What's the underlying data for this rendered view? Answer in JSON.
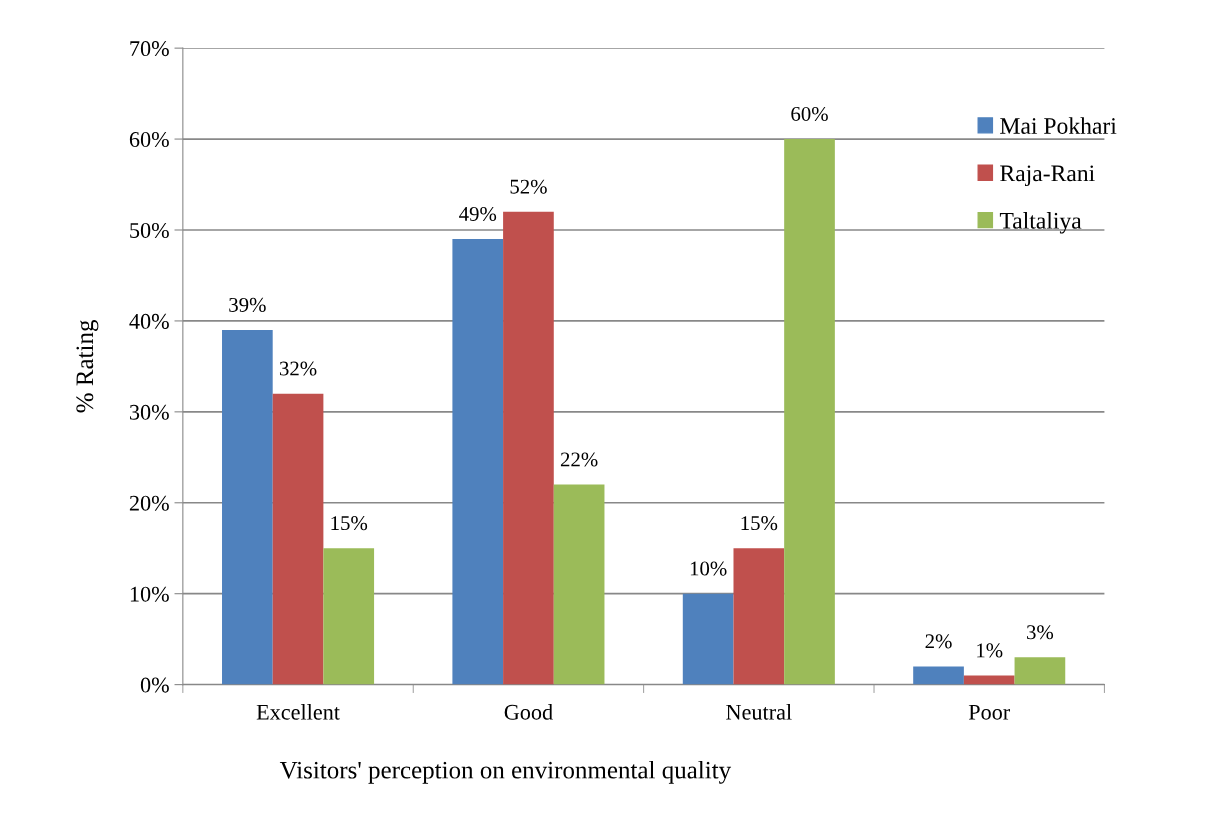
{
  "chart_data": {
    "type": "bar",
    "xlabel": "Visitors' perception on environmental quality",
    "ylabel": "% Rating",
    "categories": [
      "Excellent",
      "Good",
      "Neutral",
      "Poor"
    ],
    "series": [
      {
        "name": "Mai Pokhari",
        "color": "#4f81bd",
        "values": [
          39,
          49,
          10,
          2
        ],
        "value_labels": [
          "39%",
          "49%",
          "10%",
          "2%"
        ]
      },
      {
        "name": "Raja-Rani",
        "color": "#c0504d",
        "values": [
          32,
          52,
          15,
          1
        ],
        "value_labels": [
          "32%",
          "52%",
          "15%",
          "1%"
        ]
      },
      {
        "name": "Taltaliya",
        "color": "#9bbb59",
        "values": [
          15,
          22,
          60,
          3
        ],
        "value_labels": [
          "15%",
          "22%",
          "60%",
          "3%"
        ]
      }
    ],
    "ylim": [
      0,
      70
    ],
    "yticks": [
      {
        "value": 0,
        "label": "0%"
      },
      {
        "value": 10,
        "label": "10%"
      },
      {
        "value": 20,
        "label": "20%"
      },
      {
        "value": 30,
        "label": "30%"
      },
      {
        "value": 40,
        "label": "40%"
      },
      {
        "value": 50,
        "label": "50%"
      },
      {
        "value": 60,
        "label": "60%"
      },
      {
        "value": 70,
        "label": "70%"
      }
    ],
    "grid": "y",
    "legend": "right"
  }
}
